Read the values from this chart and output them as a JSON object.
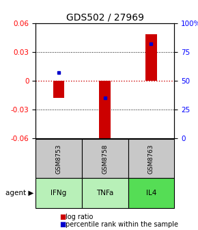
{
  "title": "GDS502 / 27969",
  "samples": [
    "GSM8753",
    "GSM8758",
    "GSM8763"
  ],
  "agents": [
    "IFNg",
    "TNFa",
    "IL4"
  ],
  "log_ratios": [
    -0.018,
    -0.065,
    0.048
  ],
  "percentile_ranks": [
    57,
    35,
    82
  ],
  "ylim": [
    -0.06,
    0.06
  ],
  "yticks_left": [
    -0.06,
    -0.03,
    0,
    0.03,
    0.06
  ],
  "yticks_right": [
    0,
    25,
    50,
    75,
    100
  ],
  "bar_color": "#cc0000",
  "dot_color": "#0000cc",
  "zero_line_color": "#cc0000",
  "grid_color": "#000000",
  "sample_bg": "#c8c8c8",
  "agent_colors": [
    "#b8f0b8",
    "#b8f0b8",
    "#55dd55"
  ],
  "title_fontsize": 10,
  "tick_fontsize": 7.5,
  "legend_fontsize": 7,
  "bar_width": 0.25
}
